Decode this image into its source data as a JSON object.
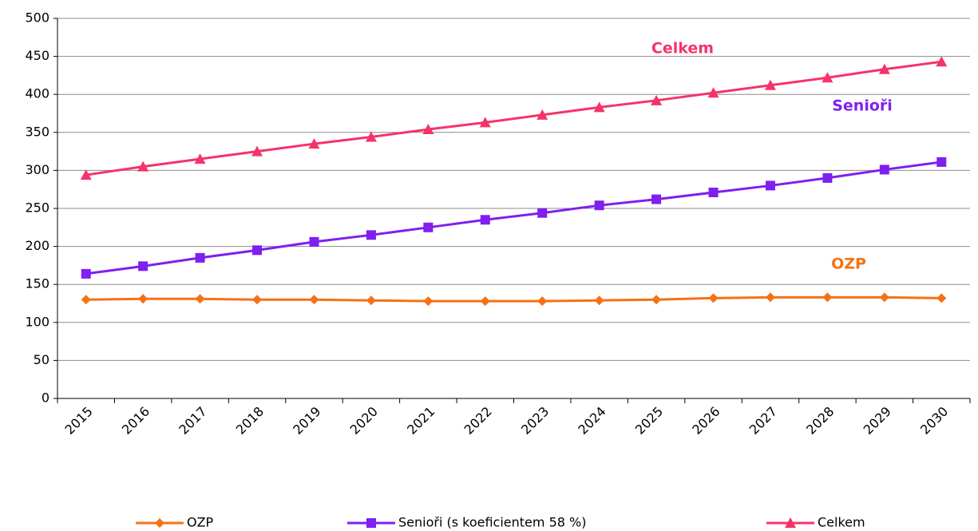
{
  "chart_data": {
    "type": "line",
    "categories": [
      "2015",
      "2016",
      "2017",
      "2018",
      "2019",
      "2020",
      "2021",
      "2022",
      "2023",
      "2024",
      "2025",
      "2026",
      "2027",
      "2028",
      "2029",
      "2030"
    ],
    "series": [
      {
        "name": "OZP",
        "color": "#f47216",
        "marker": "diamond",
        "values": [
          130,
          131,
          131,
          130,
          130,
          129,
          128,
          128,
          128,
          129,
          130,
          132,
          133,
          133,
          133,
          132
        ]
      },
      {
        "name": "Senioři (s koeficientem 58 %)",
        "color": "#7f1ff0",
        "marker": "square",
        "values": [
          164,
          174,
          185,
          195,
          206,
          215,
          225,
          235,
          244,
          254,
          262,
          271,
          280,
          290,
          301,
          311
        ]
      },
      {
        "name": "Celkem",
        "color": "#f5336a",
        "marker": "triangle",
        "values": [
          294,
          305,
          315,
          325,
          335,
          344,
          354,
          363,
          373,
          383,
          392,
          402,
          412,
          422,
          433,
          443
        ]
      }
    ],
    "annotations": [
      {
        "text": "Celkem",
        "color": "#f5336a"
      },
      {
        "text": "Senioři",
        "color": "#7f1ff0"
      },
      {
        "text": "OZP",
        "color": "#f47216"
      }
    ],
    "ylim": [
      0,
      500
    ],
    "yticks": [
      0,
      50,
      100,
      150,
      200,
      250,
      300,
      350,
      400,
      450,
      500
    ],
    "grid": true,
    "legend": "bottom"
  }
}
